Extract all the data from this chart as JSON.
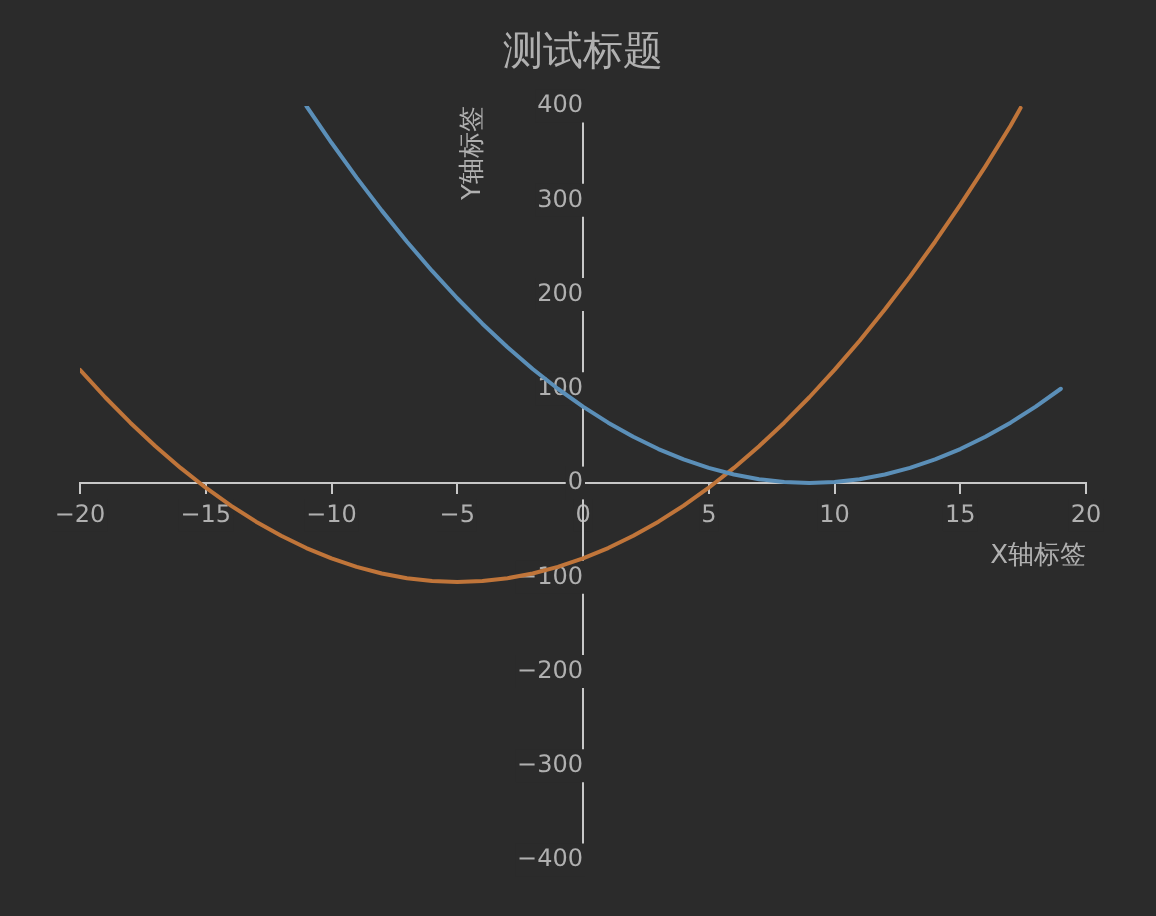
{
  "chart_data": {
    "type": "line",
    "title": "测试标题",
    "xlabel": "X轴标签",
    "ylabel": "Y轴标签",
    "xlim": [
      -20,
      20
    ],
    "xticks": [
      -20,
      -15,
      -10,
      -5,
      0,
      5,
      10,
      15,
      20
    ],
    "ylim": [
      -400,
      400
    ],
    "yticks": [
      -400,
      -300,
      -200,
      -100,
      0,
      100,
      200,
      300,
      400
    ],
    "grid": false,
    "legend": false,
    "marker": "none",
    "line_style": "solid",
    "series": [
      {
        "color": "#5b8fb8",
        "x": [
          -11,
          -10,
          -9,
          -8,
          -7,
          -6,
          -5,
          -4,
          -3,
          -2,
          -1,
          0,
          1,
          2,
          3,
          4,
          5,
          6,
          7,
          8,
          9,
          10,
          11,
          12,
          13,
          14,
          15,
          16,
          17,
          18,
          19
        ],
        "values": [
          400,
          361,
          324,
          289,
          256,
          225,
          196,
          169,
          144,
          121,
          100,
          81,
          64,
          49,
          36,
          25,
          16,
          9,
          4,
          1,
          0,
          1,
          4,
          9,
          16,
          25,
          36,
          49,
          64,
          81,
          100
        ]
      },
      {
        "color": "#c0753a",
        "x": [
          -20,
          -19,
          -18,
          -17,
          -16,
          -15,
          -14,
          -13,
          -12,
          -11,
          -10,
          -9,
          -8,
          -7,
          -6,
          -5,
          -4,
          -3,
          -2,
          -1,
          0,
          1,
          2,
          3,
          4,
          5,
          6,
          7,
          8,
          9,
          10,
          11,
          12,
          13,
          14,
          15,
          16,
          17,
          17.4
        ],
        "values": [
          120,
          91,
          64,
          39,
          16,
          -5,
          -24,
          -41,
          -56,
          -69,
          -80,
          -89,
          -96,
          -101,
          -104,
          -105,
          -104,
          -101,
          -96,
          -89,
          -80,
          -69,
          -56,
          -41,
          -24,
          -5,
          16,
          39,
          64,
          91,
          120,
          151,
          184,
          219,
          256,
          295,
          336,
          379,
          398
        ]
      }
    ]
  }
}
